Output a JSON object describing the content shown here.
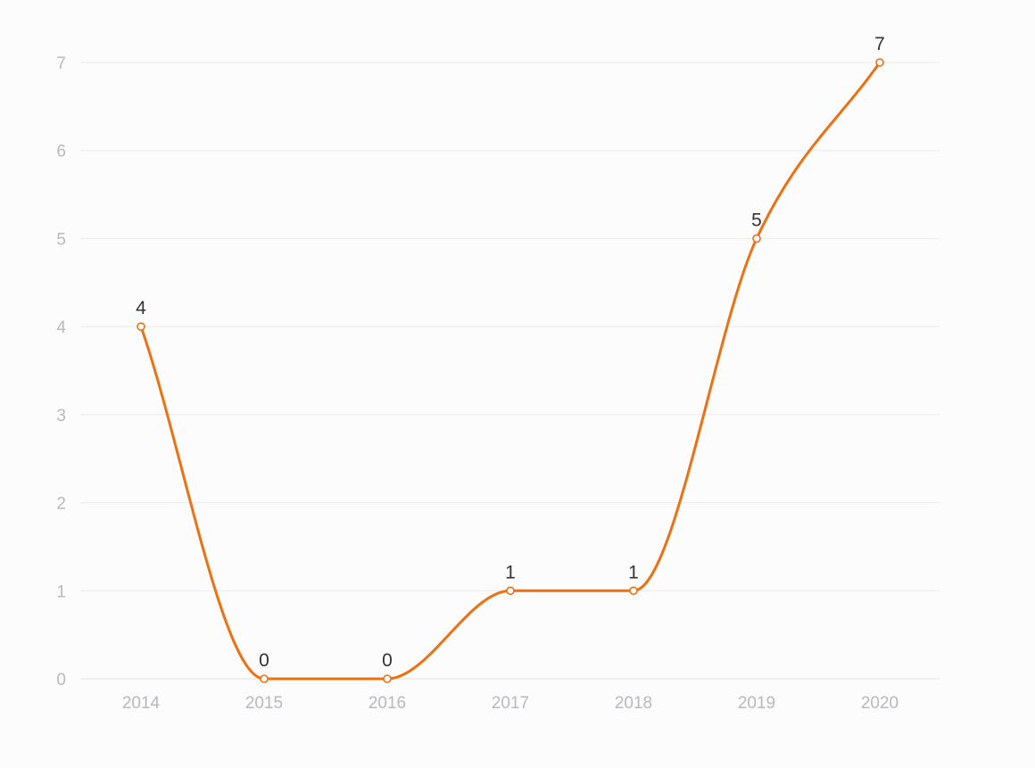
{
  "colors": {
    "series": "#ee7011",
    "point_fill": "#ffffff"
  },
  "chart_data": {
    "type": "line",
    "smooth": true,
    "categories": [
      "2014",
      "2015",
      "2016",
      "2017",
      "2018",
      "2019",
      "2020"
    ],
    "series": [
      {
        "values": [
          4,
          0,
          0,
          1,
          1,
          5,
          7
        ]
      }
    ],
    "ylim": [
      0,
      7
    ],
    "yticks": [
      "0",
      "1",
      "2",
      "3",
      "4",
      "5",
      "6",
      "7"
    ],
    "grid": true,
    "legend": "none",
    "data_labels": [
      "4",
      "0",
      "0",
      "1",
      "1",
      "5",
      "7"
    ]
  }
}
